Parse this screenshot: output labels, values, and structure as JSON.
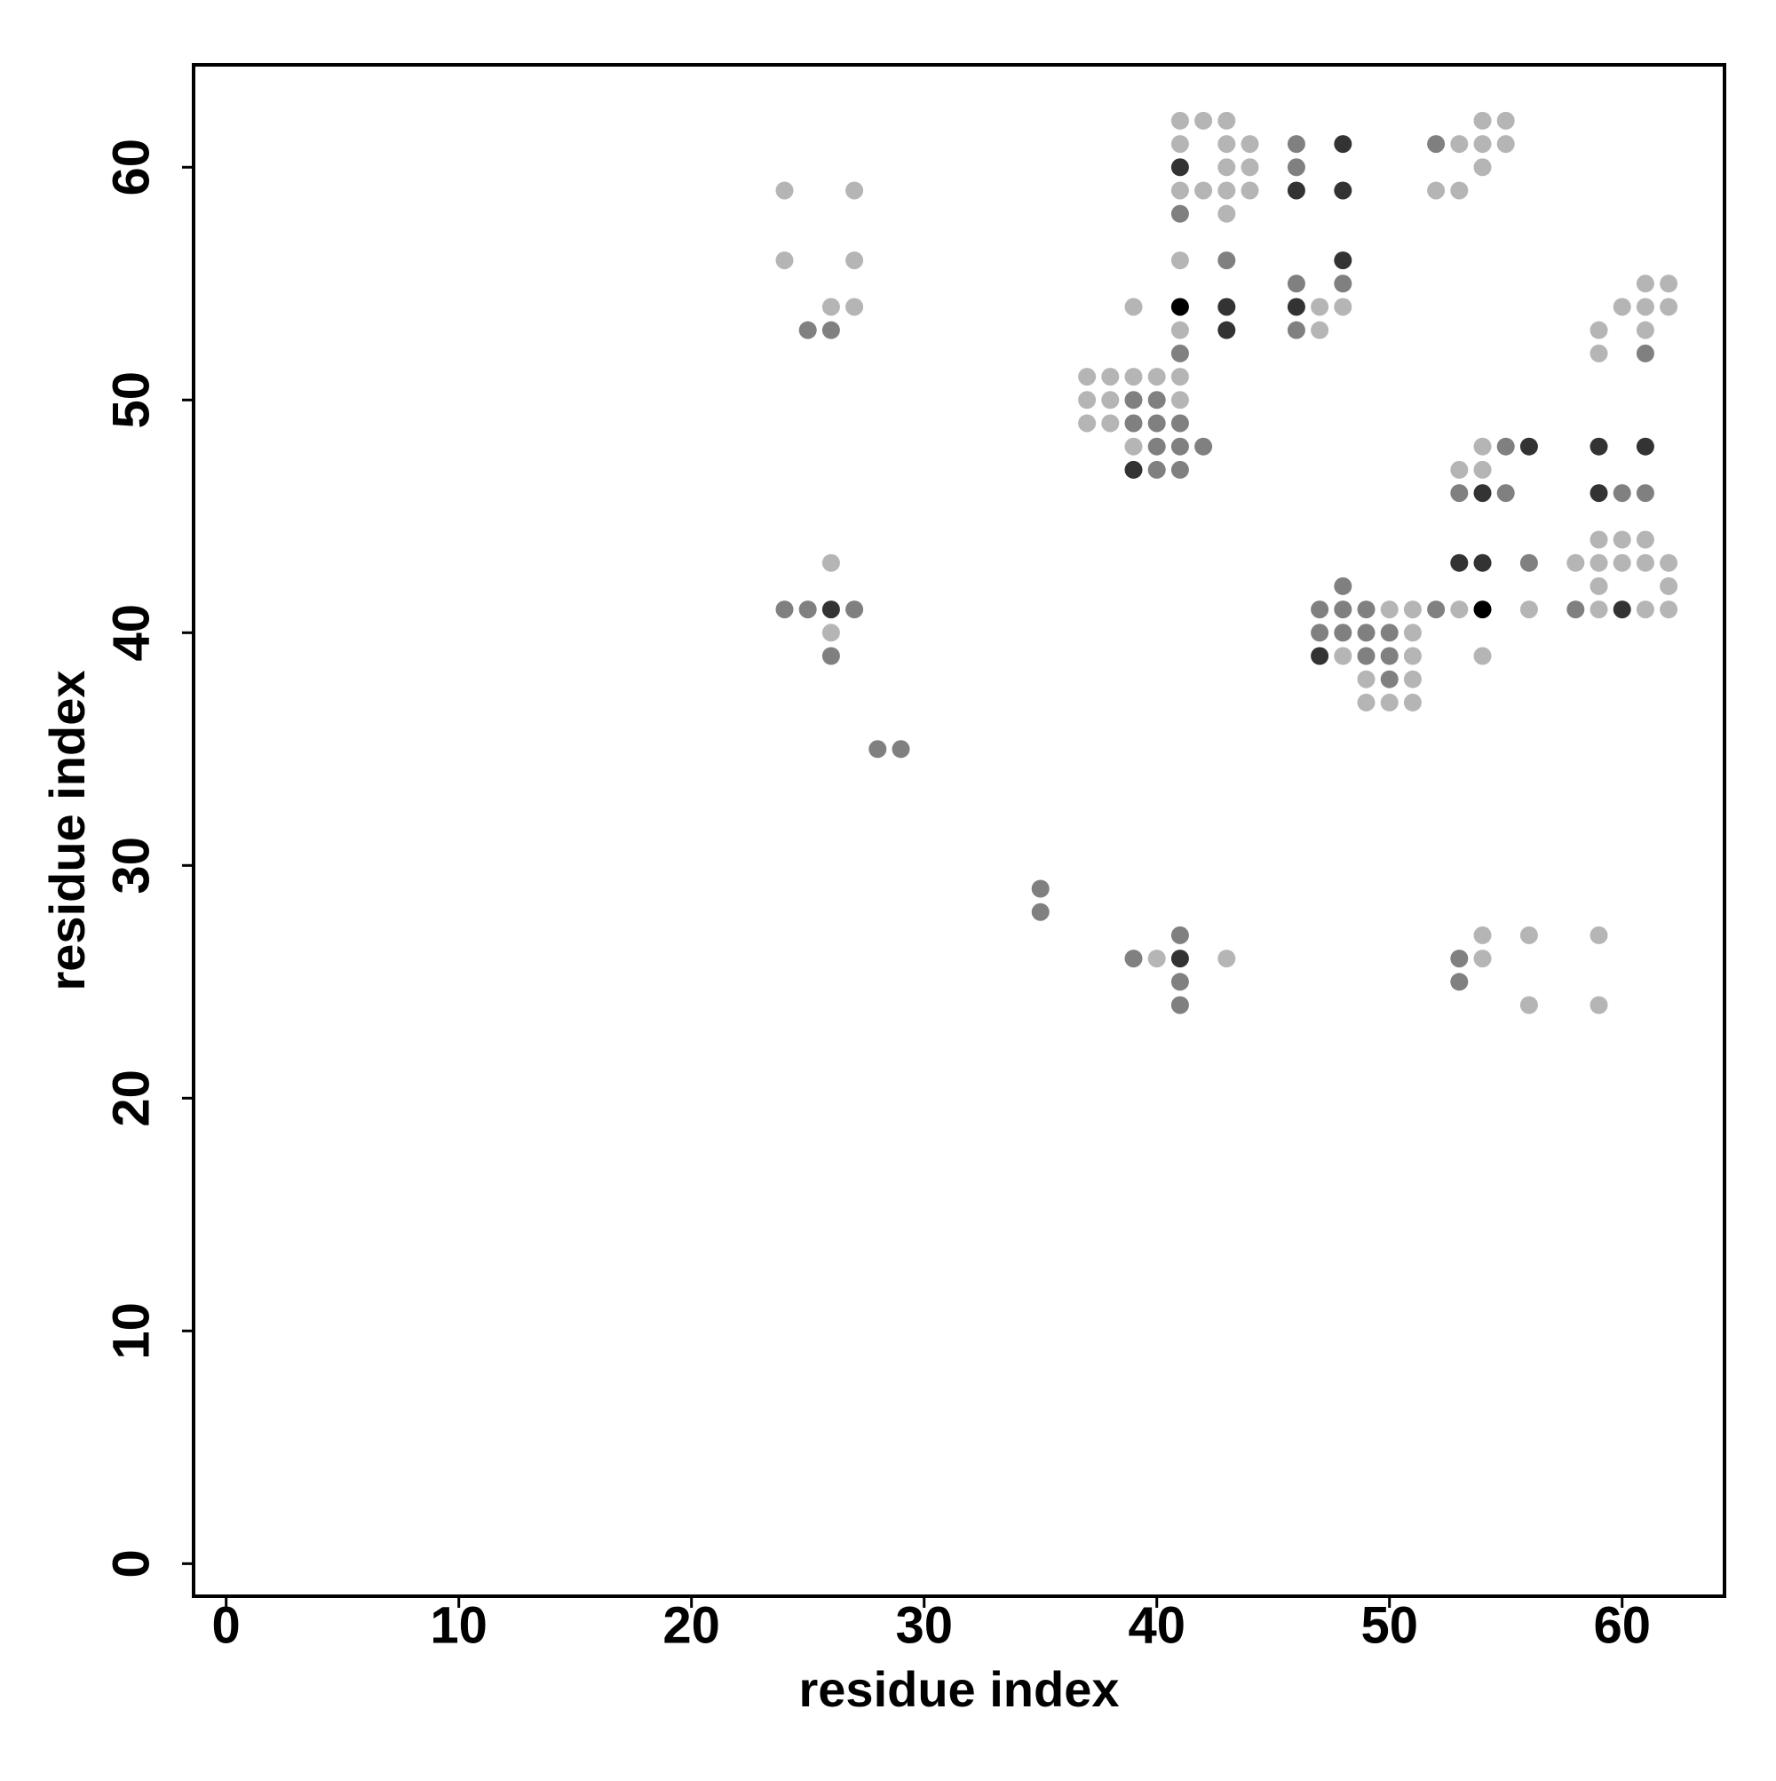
{
  "chart_data": {
    "type": "scatter",
    "xlabel": "residue index",
    "ylabel": "residue index",
    "xlim": [
      -1.4,
      64.4
    ],
    "ylim": [
      -1.4,
      64.4
    ],
    "xticks": [
      0,
      10,
      20,
      30,
      40,
      50,
      60
    ],
    "yticks": [
      0,
      10,
      20,
      30,
      40,
      50,
      60
    ],
    "series": [
      {
        "color": "#b5b5b5",
        "x": [
          41,
          42,
          43,
          54,
          55,
          41,
          43,
          44,
          53,
          54,
          55,
          43,
          44,
          54,
          24,
          27,
          41,
          42,
          43,
          44,
          52,
          53,
          43,
          24,
          27,
          41,
          61,
          62,
          26,
          27,
          39,
          47,
          48,
          60,
          61,
          62,
          41,
          47,
          59,
          61,
          59,
          37,
          38,
          39,
          40,
          41,
          37,
          38,
          41,
          37,
          38,
          39,
          54,
          53,
          54,
          59,
          60,
          61,
          26,
          58,
          59,
          60,
          61,
          62,
          59,
          62,
          50,
          51,
          53,
          56,
          59,
          61,
          62,
          26,
          51,
          48,
          51,
          54,
          49,
          51,
          49,
          50,
          51,
          54,
          56,
          59,
          40,
          43,
          54,
          56,
          59
        ],
        "y": [
          62,
          62,
          62,
          62,
          62,
          61,
          61,
          61,
          61,
          61,
          61,
          60,
          60,
          60,
          59,
          59,
          59,
          59,
          59,
          59,
          59,
          59,
          58,
          56,
          56,
          56,
          55,
          55,
          54,
          54,
          54,
          54,
          54,
          54,
          54,
          54,
          53,
          53,
          53,
          53,
          52,
          51,
          51,
          51,
          51,
          51,
          50,
          50,
          50,
          49,
          49,
          48,
          48,
          47,
          47,
          44,
          44,
          44,
          43,
          43,
          43,
          43,
          43,
          43,
          42,
          42,
          41,
          41,
          41,
          41,
          41,
          41,
          41,
          40,
          40,
          39,
          39,
          39,
          38,
          38,
          37,
          37,
          37,
          27,
          27,
          27,
          26,
          26,
          26,
          24,
          24
        ]
      },
      {
        "color": "#808080",
        "x": [
          46,
          52,
          46,
          41,
          43,
          46,
          48,
          25,
          26,
          46,
          41,
          61,
          39,
          40,
          39,
          40,
          41,
          40,
          41,
          42,
          55,
          40,
          41,
          53,
          55,
          60,
          61,
          56,
          48,
          24,
          25,
          27,
          47,
          48,
          49,
          52,
          58,
          47,
          48,
          49,
          50,
          26,
          49,
          50,
          50,
          28,
          29,
          35,
          35,
          41,
          39,
          53,
          41,
          53,
          41
        ],
        "y": [
          61,
          61,
          60,
          58,
          56,
          55,
          55,
          53,
          53,
          53,
          52,
          52,
          50,
          50,
          49,
          49,
          49,
          48,
          48,
          48,
          48,
          47,
          47,
          46,
          46,
          46,
          46,
          43,
          42,
          41,
          41,
          41,
          41,
          41,
          41,
          41,
          41,
          40,
          40,
          40,
          40,
          39,
          39,
          39,
          38,
          35,
          35,
          29,
          28,
          27,
          26,
          26,
          25,
          25,
          24
        ]
      },
      {
        "color": "#333333",
        "x": [
          48,
          41,
          46,
          48,
          48,
          43,
          46,
          43,
          56,
          59,
          61,
          39,
          54,
          59,
          53,
          54,
          26,
          60,
          47,
          41
        ],
        "y": [
          61,
          60,
          59,
          59,
          56,
          54,
          54,
          53,
          48,
          48,
          48,
          47,
          46,
          46,
          43,
          43,
          41,
          41,
          39,
          26
        ]
      },
      {
        "color": "#000000",
        "x": [
          41,
          54
        ],
        "y": [
          54,
          41
        ]
      }
    ]
  }
}
